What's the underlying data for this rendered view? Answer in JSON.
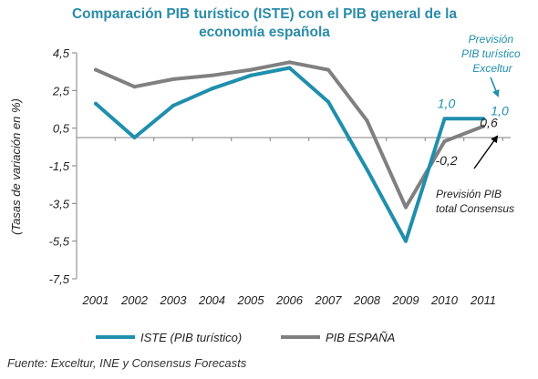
{
  "chart_data": {
    "type": "line",
    "title": "Comparación PIB turístico (ISTE) con el  PIB general de la economía española",
    "title_lines": [
      "Comparación PIB turístico (ISTE) con el  PIB general de la",
      "economía española"
    ],
    "ylabel": "(Tasas de variación en %)",
    "xlabel": "",
    "categories": [
      "2001",
      "2002",
      "2003",
      "2004",
      "2005",
      "2006",
      "2007",
      "2008",
      "2009",
      "2010",
      "2011"
    ],
    "ylim": [
      -7.5,
      4.5
    ],
    "yticks": [
      4.5,
      2.5,
      0.5,
      -1.5,
      -3.5,
      -5.5,
      -7.5
    ],
    "ytick_labels": [
      "4,5",
      "2,5",
      "0,5",
      "-1,5",
      "-3,5",
      "-5,5",
      "-7,5"
    ],
    "zero_line": 0,
    "grid": false,
    "legend_position": "bottom",
    "series": [
      {
        "name": "ISTE (PIB turístico)",
        "color": "#1f8fad",
        "values": [
          1.8,
          0.0,
          1.7,
          2.6,
          3.3,
          3.7,
          1.9,
          -1.7,
          -5.5,
          1.0,
          1.0
        ]
      },
      {
        "name": "PIB ESPAÑA",
        "color": "#808080",
        "values": [
          3.6,
          2.7,
          3.1,
          3.3,
          3.6,
          4.0,
          3.6,
          0.9,
          -3.7,
          -0.2,
          0.6
        ]
      }
    ],
    "data_labels": [
      {
        "text": "1,0",
        "series": 0,
        "index": 9,
        "color": "#1f8fad"
      },
      {
        "text": "1,0",
        "series": 0,
        "index": 10,
        "color": "#1f8fad"
      },
      {
        "text": "-0,2",
        "series": 1,
        "index": 9,
        "color": "#222222"
      },
      {
        "text": "0,6",
        "series": 1,
        "index": 10,
        "color": "#222222"
      }
    ],
    "annotations": [
      {
        "lines": [
          "Previsión",
          "PIB turístico",
          "Exceltur"
        ],
        "color": "#1f8fad"
      },
      {
        "lines": [
          "Previsión PIB",
          "total Consensus"
        ],
        "color": "#222222"
      }
    ]
  },
  "source": "Fuente:  Exceltur, INE y Consensus Forecasts"
}
